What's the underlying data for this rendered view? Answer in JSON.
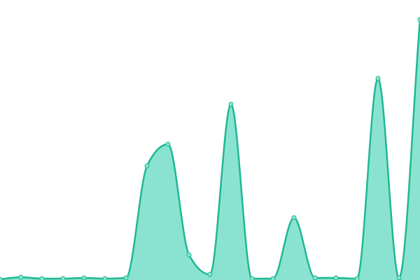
{
  "chart_data": {
    "type": "area",
    "categories": [
      null,
      null,
      null,
      null,
      null,
      null,
      null,
      null,
      null,
      null,
      null,
      null,
      null,
      null,
      null,
      null,
      null,
      null,
      null,
      null,
      null
    ],
    "values": [
      1,
      4,
      2,
      2,
      3,
      2,
      3,
      163,
      194,
      36,
      8,
      251,
      2,
      2,
      89,
      3,
      3,
      2,
      288,
      3,
      372
    ],
    "color": "#1fb894",
    "fill": "#8ae3d0",
    "ylim": [
      0,
      400
    ]
  }
}
